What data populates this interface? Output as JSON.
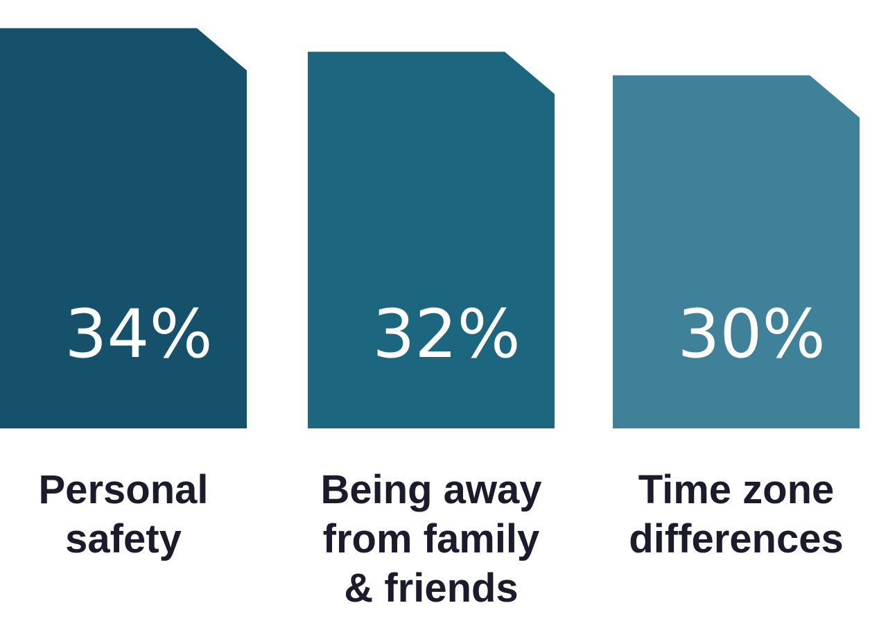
{
  "chart_data": {
    "type": "bar",
    "categories": [
      [
        "Personal",
        "safety"
      ],
      [
        "Being away",
        "from family",
        "& friends"
      ],
      [
        "Time zone",
        "differences"
      ]
    ],
    "values": [
      34,
      32,
      30
    ],
    "value_labels": [
      "34%",
      "32%",
      "30%"
    ],
    "colors": [
      "#15516a",
      "#1c667f",
      "#3f8199"
    ],
    "grid": false,
    "legend": "none"
  }
}
